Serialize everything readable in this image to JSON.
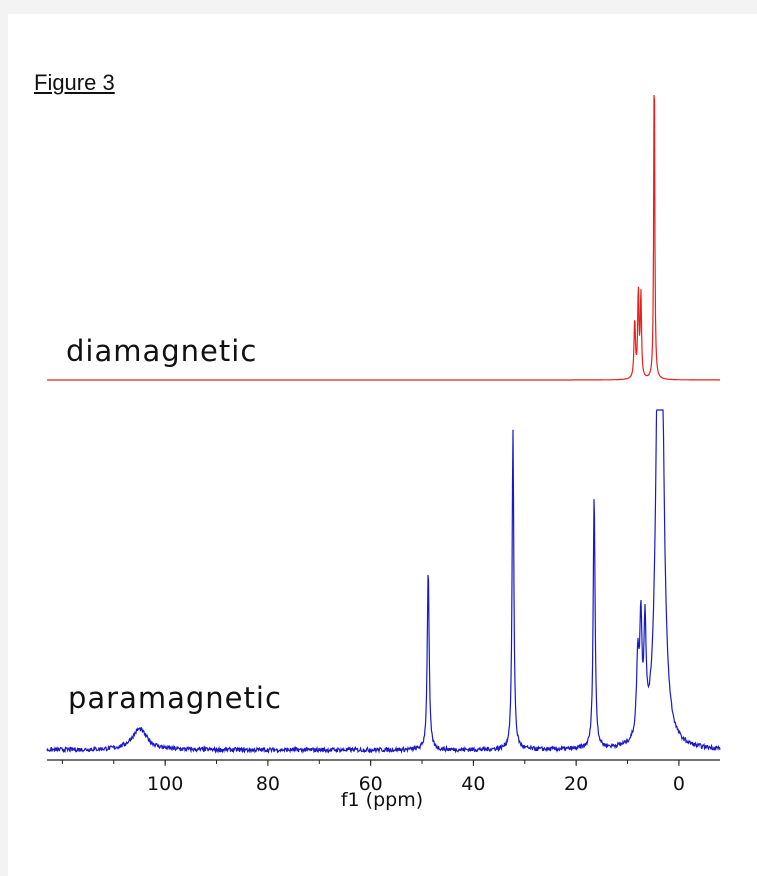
{
  "figure_label": "Figure 3",
  "chart_data": {
    "type": "line",
    "xlabel": "f1 (ppm)",
    "xlim": [
      123,
      -8
    ],
    "x_reversed": true,
    "x_ticks": [
      100,
      80,
      60,
      40,
      20,
      0
    ],
    "x_tick_labels": [
      "100",
      "80",
      "60",
      "40",
      "20",
      "0"
    ],
    "minor_tick_step": 10,
    "grid": false,
    "series": [
      {
        "name": "diamagnetic",
        "color": "#e8201c",
        "baseline": 0,
        "noise": 0,
        "peaks": [
          {
            "ppm": 8.6,
            "height": 0.18,
            "width": 0.16
          },
          {
            "ppm": 7.9,
            "height": 0.27,
            "width": 0.14
          },
          {
            "ppm": 7.4,
            "height": 0.26,
            "width": 0.14
          },
          {
            "ppm": 4.8,
            "height": 1.0,
            "width": 0.12
          }
        ]
      },
      {
        "name": "paramagnetic",
        "color": "#1919c8",
        "baseline": 0,
        "noise": 0.008,
        "peaks": [
          {
            "ppm": 105,
            "height": 0.038,
            "width": 1.8
          },
          {
            "ppm": 48.8,
            "height": 0.33,
            "width": 0.22
          },
          {
            "ppm": 32.3,
            "height": 0.58,
            "width": 0.2
          },
          {
            "ppm": 16.5,
            "height": 0.46,
            "width": 0.22
          },
          {
            "ppm": 8.0,
            "height": 0.14,
            "width": 0.3
          },
          {
            "ppm": 7.4,
            "height": 0.2,
            "width": 0.25
          },
          {
            "ppm": 6.6,
            "height": 0.19,
            "width": 0.25
          },
          {
            "ppm": 4.0,
            "height": 0.6,
            "width": 0.6
          },
          {
            "ppm": 3.4,
            "height": 0.6,
            "width": 0.6
          }
        ]
      }
    ]
  }
}
